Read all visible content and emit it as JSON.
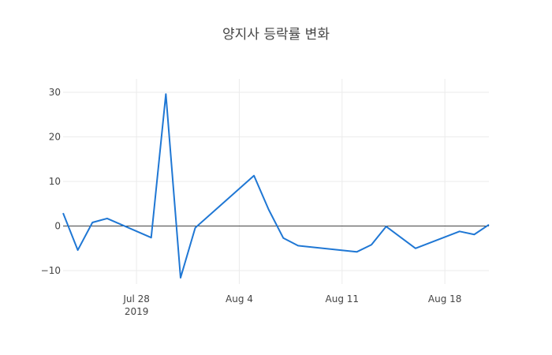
{
  "chart_data": {
    "type": "line",
    "title": "양지사 등락률 변화",
    "xlabel": "",
    "ylabel": "",
    "x_ticks": [
      {
        "date": "2019-07-28",
        "label": "Jul 28",
        "sublabel": "2019"
      },
      {
        "date": "2019-08-04",
        "label": "Aug 4",
        "sublabel": ""
      },
      {
        "date": "2019-08-11",
        "label": "Aug 11",
        "sublabel": ""
      },
      {
        "date": "2019-08-18",
        "label": "Aug 18",
        "sublabel": ""
      }
    ],
    "xlim": [
      "2019-07-23",
      "2019-08-21"
    ],
    "ylim": [
      -13,
      33
    ],
    "y_ticks": [
      30,
      20,
      10,
      0,
      -10
    ],
    "zero_line": true,
    "grid": true,
    "color": "#1f77d4",
    "series": [
      {
        "x": [
          "2019-07-23",
          "2019-07-24",
          "2019-07-25",
          "2019-07-26",
          "2019-07-29",
          "2019-07-30",
          "2019-07-31",
          "2019-08-01",
          "2019-08-05",
          "2019-08-06",
          "2019-08-07",
          "2019-08-08",
          "2019-08-12",
          "2019-08-13",
          "2019-08-14",
          "2019-08-16",
          "2019-08-19",
          "2019-08-20",
          "2019-08-21"
        ],
        "y": [
          2.9,
          -5.4,
          0.8,
          1.7,
          -2.6,
          29.6,
          -11.6,
          -0.4,
          11.3,
          3.7,
          -2.7,
          -4.4,
          -5.8,
          -4.2,
          -0.1,
          -5.0,
          -1.2,
          -1.9,
          0.3
        ]
      }
    ]
  }
}
